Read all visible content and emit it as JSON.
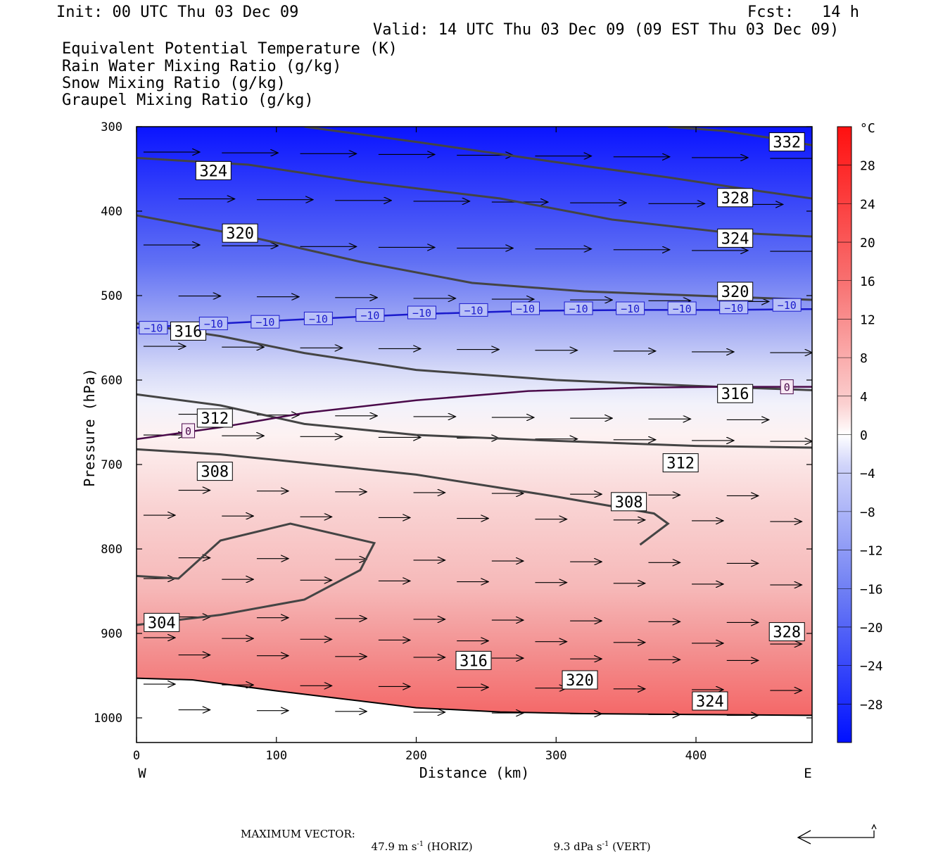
{
  "header": {
    "init": "Init: 00 UTC Thu 03 Dec 09",
    "fcst_label": "Fcst:",
    "fcst_value": "14 h",
    "valid": "Valid: 14 UTC Thu 03 Dec 09 (09 EST Thu 03 Dec 09)"
  },
  "legend": [
    {
      "label": "Equivalent Potential Temperature (K)",
      "color": "#555555"
    },
    {
      "label": "Rain Water Mixing Ratio (g/kg)",
      "color": "#1a7a1a"
    },
    {
      "label": "Snow Mixing Ratio (g/kg)",
      "color": "#f0a060"
    },
    {
      "label": "Graupel Mixing Ratio (g/kg)",
      "color": "#e070e0"
    }
  ],
  "chart_data": {
    "type": "cross-section",
    "xlabel": "Distance (km)",
    "ylabel": "Pressure (hPa)",
    "xlim": [
      0,
      483
    ],
    "ylim": [
      1030,
      300
    ],
    "x_ticks": [
      0,
      100,
      200,
      300,
      400
    ],
    "y_ticks": [
      300,
      400,
      500,
      600,
      700,
      800,
      900,
      1000
    ],
    "x_end_labels": {
      "left": "W",
      "right": "E"
    },
    "colorbar": {
      "unit": "°C",
      "ticks": [
        "28",
        "24",
        "20",
        "16",
        "12",
        "8",
        "4",
        "0",
        "−4",
        "−8",
        "−12",
        "−16",
        "−20",
        "−24",
        "−28"
      ],
      "warm_color": "#ff1a1a",
      "cold_color": "#0010ff"
    },
    "temperature_isotherms": [
      {
        "label": "−10",
        "color": "#1a1acc",
        "points": [
          [
            0,
            538
          ],
          [
            60,
            533
          ],
          [
            120,
            528
          ],
          [
            200,
            522
          ],
          [
            280,
            518
          ],
          [
            360,
            517
          ],
          [
            420,
            517
          ],
          [
            483,
            516
          ]
        ]
      },
      {
        "label": "0",
        "color": "#4a0a4a",
        "points": [
          [
            0,
            670
          ],
          [
            60,
            656
          ],
          [
            120,
            639
          ],
          [
            200,
            624
          ],
          [
            280,
            613
          ],
          [
            360,
            609
          ],
          [
            420,
            608
          ],
          [
            483,
            608
          ]
        ]
      }
    ],
    "theta_e_contours": [
      {
        "label": "332",
        "points": [
          [
            380,
            300
          ],
          [
            420,
            305
          ],
          [
            460,
            315
          ],
          [
            483,
            322
          ]
        ]
      },
      {
        "label": "328",
        "points": [
          [
            120,
            300
          ],
          [
            200,
            318
          ],
          [
            300,
            342
          ],
          [
            380,
            360
          ],
          [
            440,
            375
          ],
          [
            483,
            385
          ]
        ]
      },
      {
        "label": "324",
        "points": [
          [
            0,
            337
          ],
          [
            80,
            345
          ],
          [
            160,
            365
          ],
          [
            260,
            385
          ],
          [
            340,
            410
          ],
          [
            420,
            425
          ],
          [
            483,
            430
          ]
        ]
      },
      {
        "label": "320",
        "points": [
          [
            0,
            405
          ],
          [
            80,
            430
          ],
          [
            160,
            460
          ],
          [
            240,
            485
          ],
          [
            320,
            495
          ],
          [
            400,
            500
          ],
          [
            483,
            505
          ]
        ]
      },
      {
        "label": "316",
        "points": [
          [
            0,
            533
          ],
          [
            60,
            548
          ],
          [
            120,
            568
          ],
          [
            200,
            588
          ],
          [
            300,
            600
          ],
          [
            400,
            607
          ],
          [
            483,
            612
          ]
        ]
      },
      {
        "label": "312",
        "points": [
          [
            0,
            617
          ],
          [
            60,
            630
          ],
          [
            120,
            652
          ],
          [
            200,
            665
          ],
          [
            300,
            672
          ],
          [
            400,
            678
          ],
          [
            483,
            680
          ]
        ]
      },
      {
        "label": "308",
        "points": [
          [
            0,
            682
          ],
          [
            60,
            688
          ],
          [
            120,
            698
          ],
          [
            200,
            712
          ],
          [
            300,
            738
          ],
          [
            370,
            758
          ],
          [
            380,
            770
          ],
          [
            360,
            795
          ]
        ]
      },
      {
        "label": "304",
        "points": [
          [
            0,
            890
          ],
          [
            60,
            878
          ],
          [
            120,
            860
          ],
          [
            160,
            825
          ],
          [
            170,
            793
          ],
          [
            110,
            770
          ],
          [
            60,
            790
          ],
          [
            30,
            835
          ],
          [
            0,
            832
          ]
        ]
      }
    ],
    "theta_e_labels": [
      {
        "label": "332",
        "x": 465,
        "p": 318
      },
      {
        "label": "328",
        "x": 428,
        "p": 384
      },
      {
        "label": "328",
        "x": 465,
        "p": 898
      },
      {
        "label": "324",
        "x": 55,
        "p": 352
      },
      {
        "label": "324",
        "x": 428,
        "p": 432
      },
      {
        "label": "324",
        "x": 410,
        "p": 980
      },
      {
        "label": "320",
        "x": 74,
        "p": 426
      },
      {
        "label": "320",
        "x": 428,
        "p": 495
      },
      {
        "label": "320",
        "x": 317,
        "p": 955
      },
      {
        "label": "316",
        "x": 37,
        "p": 542
      },
      {
        "label": "316",
        "x": 428,
        "p": 616
      },
      {
        "label": "316",
        "x": 241,
        "p": 932
      },
      {
        "label": "312",
        "x": 56,
        "p": 645
      },
      {
        "label": "312",
        "x": 389,
        "p": 698
      },
      {
        "label": "308",
        "x": 56,
        "p": 708
      },
      {
        "label": "308",
        "x": 352,
        "p": 744
      },
      {
        "label": "304",
        "x": 18,
        "p": 887
      }
    ],
    "isotherm_labels": [
      {
        "label": "−10",
        "x": 12,
        "p": 538
      },
      {
        "label": "−10",
        "x": 55,
        "p": 533
      },
      {
        "label": "−10",
        "x": 92,
        "p": 531
      },
      {
        "label": "−10",
        "x": 130,
        "p": 527
      },
      {
        "label": "−10",
        "x": 167,
        "p": 523
      },
      {
        "label": "−10",
        "x": 204,
        "p": 520
      },
      {
        "label": "−10",
        "x": 241,
        "p": 517
      },
      {
        "label": "−10",
        "x": 278,
        "p": 515
      },
      {
        "label": "−10",
        "x": 316,
        "p": 515
      },
      {
        "label": "−10",
        "x": 353,
        "p": 515
      },
      {
        "label": "−10",
        "x": 390,
        "p": 515
      },
      {
        "label": "−10",
        "x": 427,
        "p": 514
      },
      {
        "label": "−10",
        "x": 465,
        "p": 511
      },
      {
        "label": "0",
        "x": 37,
        "p": 660
      },
      {
        "label": "0",
        "x": 465,
        "p": 608
      }
    ],
    "ground_profile": [
      [
        0,
        953
      ],
      [
        40,
        955
      ],
      [
        100,
        968
      ],
      [
        150,
        978
      ],
      [
        200,
        988
      ],
      [
        260,
        993
      ],
      [
        320,
        995
      ],
      [
        400,
        996
      ],
      [
        483,
        997
      ]
    ]
  },
  "footer": {
    "label": "MAXIMUM VECTOR:",
    "horiz_value": "47.9 m s",
    "horiz_unit": "(HORIZ)",
    "vert_value": "9.3 dPa s",
    "vert_unit": "(VERT)",
    "exponent": "-1"
  }
}
